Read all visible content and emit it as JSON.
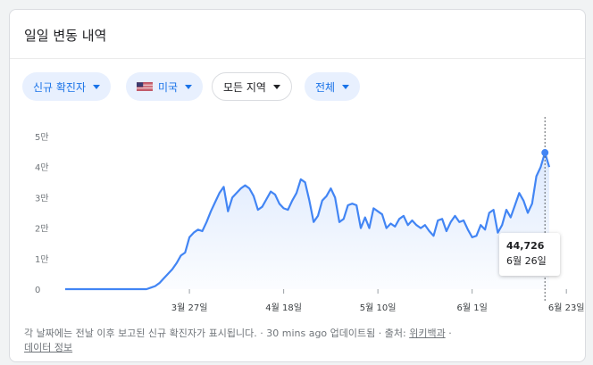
{
  "title": "일일 변동 내역",
  "filters": [
    {
      "label": "신규 확진자",
      "active": true
    },
    {
      "label": "미국",
      "active": true,
      "flag": "us-flag-icon"
    },
    {
      "label": "모든 지역",
      "active": false
    },
    {
      "label": "전체",
      "active": true
    }
  ],
  "tooltip": {
    "value": "44,726",
    "date": "6월 26일"
  },
  "footer": {
    "note": "각 날짜에는 전날 이후 보고된 신규 확진자가 표시됩니다.",
    "updated": "30 mins ago 업데이트됨",
    "source_label": "출처:",
    "source_link": "위키백과",
    "data_info": "데이터 정보"
  },
  "chart_data": {
    "type": "area",
    "x_tick_labels": [
      "3월 27일",
      "4월 18일",
      "5월 10일",
      "6월 1일",
      "6월 23일"
    ],
    "x_tick_index": [
      29,
      51,
      73,
      95,
      117
    ],
    "y_tick_labels": [
      "0",
      "1만",
      "2만",
      "3만",
      "4만",
      "5만"
    ],
    "ylim": [
      0,
      50000
    ],
    "series": [
      {
        "values": [
          0,
          0,
          0,
          0,
          0,
          0,
          0,
          0,
          0,
          0,
          0,
          0,
          0,
          0,
          0,
          0,
          0,
          0,
          0,
          0,
          500,
          1000,
          2000,
          3500,
          5000,
          6500,
          8500,
          11000,
          12000,
          17000,
          18500,
          19500,
          19000,
          22000,
          25500,
          28500,
          31500,
          33500,
          25500,
          30000,
          31500,
          33000,
          34000,
          33000,
          30500,
          26000,
          27000,
          29500,
          32000,
          31000,
          28000,
          26500,
          26000,
          29000,
          31500,
          36000,
          35000,
          29000,
          22000,
          24000,
          29000,
          30500,
          33000,
          30000,
          22000,
          23000,
          27500,
          28000,
          27500,
          20000,
          23500,
          20000,
          26500,
          25500,
          24500,
          20000,
          21500,
          20500,
          23000,
          24000,
          21000,
          22500,
          21000,
          20000,
          21000,
          19000,
          17500,
          22500,
          23000,
          19000,
          22000,
          24000,
          22000,
          22500,
          19500,
          17000,
          17500,
          21000,
          19500,
          25000,
          26000,
          18500,
          21000,
          26000,
          23500,
          27500,
          31500,
          29000,
          25000,
          28000,
          37000,
          40000,
          44726,
          40000
        ]
      }
    ]
  }
}
